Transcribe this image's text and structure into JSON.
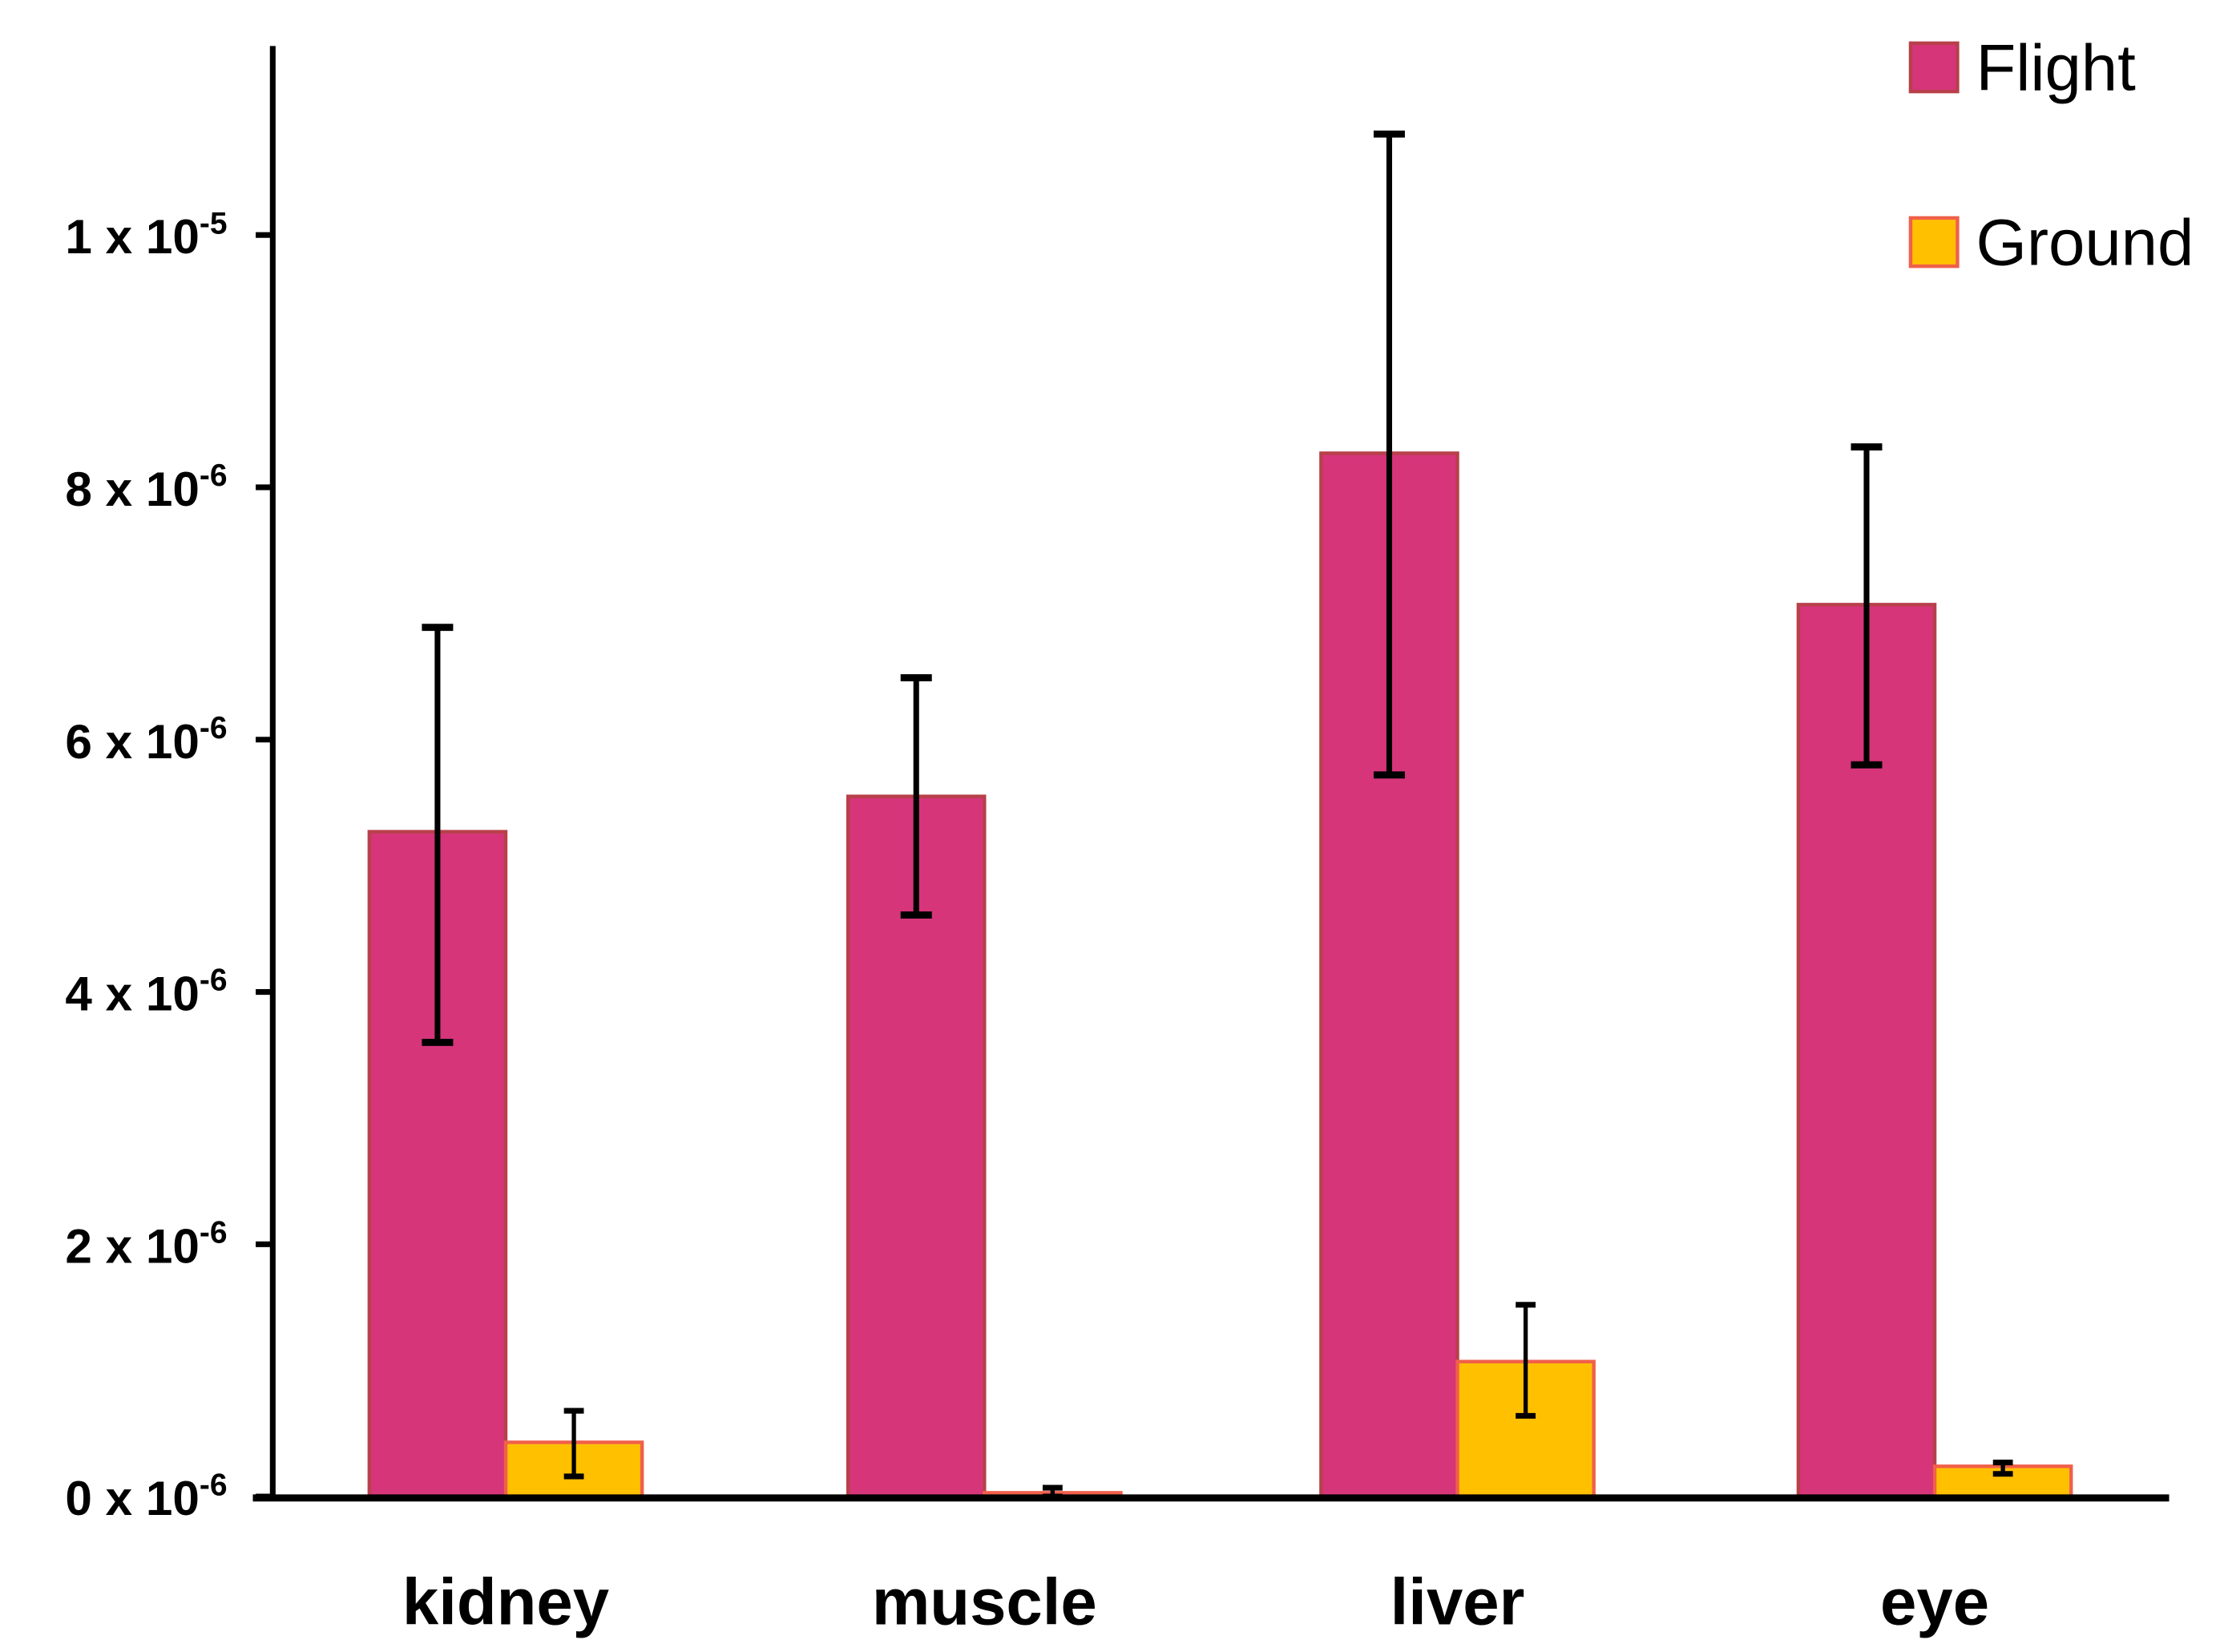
{
  "chart_data": {
    "type": "bar",
    "title": "",
    "xlabel": "",
    "ylabel": "",
    "ylim": [
      0,
      1.15e-05
    ],
    "grid": false,
    "legend_placement": "top-right",
    "categories": [
      "kidney",
      "muscle",
      "liver",
      "eye"
    ],
    "y_ticks": [
      {
        "value": 0,
        "base": "0 x 10",
        "exp": "-6"
      },
      {
        "value": 2e-06,
        "base": "2 x 10",
        "exp": "-6"
      },
      {
        "value": 4e-06,
        "base": "4 x 10",
        "exp": "-6"
      },
      {
        "value": 6e-06,
        "base": "6 x 10",
        "exp": "-6"
      },
      {
        "value": 8e-06,
        "base": "8 x 10",
        "exp": "-6"
      },
      {
        "value": 1e-05,
        "base": "1 x 10",
        "exp": "-5"
      }
    ],
    "series": [
      {
        "name": "Flight",
        "color": "#D6357A",
        "edge": "#B8404A",
        "values": [
          5.27e-06,
          5.55e-06,
          8.27e-06,
          7.07e-06
        ],
        "err_low": [
          3.6e-06,
          4.61e-06,
          5.72e-06,
          5.8e-06
        ],
        "err_high": [
          6.89e-06,
          6.49e-06,
          1.08e-05,
          8.32e-06
        ]
      },
      {
        "name": "Ground",
        "color": "#FFC000",
        "edge": "#F0604A",
        "values": [
          4.3e-07,
          3e-08,
          1.07e-06,
          2.4e-07
        ],
        "err_low": [
          1.6e-07,
          0.0,
          6.4e-07,
          1.8e-07
        ],
        "err_high": [
          6.8e-07,
          7e-08,
          1.52e-06,
          2.7e-07
        ]
      }
    ]
  }
}
